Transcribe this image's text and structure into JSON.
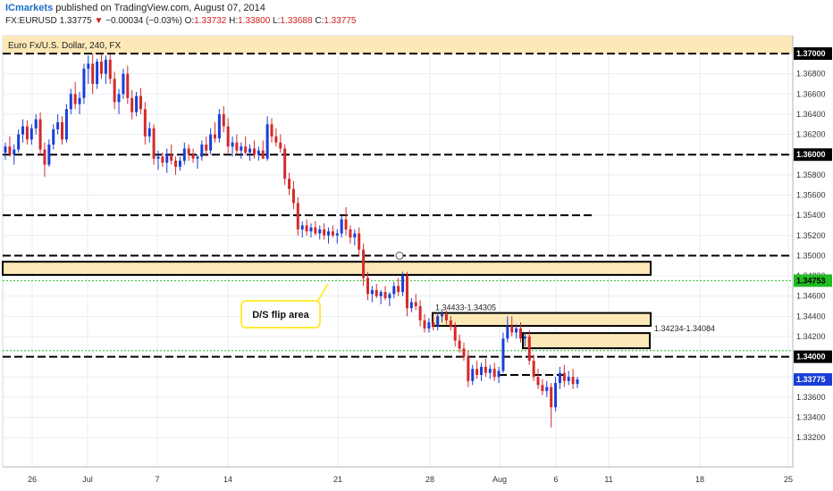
{
  "header": {
    "brand": "ICmarkets",
    "published": "published on TradingView.com, August 07, 2014",
    "pair": "FX:EURUSD",
    "last": "1.33775",
    "arrow": "▼",
    "change": "−0.00034 (−0.03%)",
    "o_label": "O:",
    "o": "1.33732",
    "h_label": "H:",
    "h": "1.33800",
    "l_label": "L:",
    "l": "1.33688",
    "c_label": "C:",
    "c": "1.33775"
  },
  "chart_data": {
    "type": "candlestick",
    "title": "Euro Fx/U.S. Dollar, 240, FX",
    "y_ticks": [
      "1.37000",
      "1.36800",
      "1.36600",
      "1.36400",
      "1.36200",
      "1.36000",
      "1.35800",
      "1.35600",
      "1.35400",
      "1.35200",
      "1.35000",
      "1.34800",
      "1.34600",
      "1.34400",
      "1.34200",
      "1.34000",
      "1.33800",
      "1.33600",
      "1.33400",
      "1.33200"
    ],
    "x_ticks": [
      "26",
      "Jul",
      "7",
      "14",
      "21",
      "28",
      "Aug",
      "6",
      "11",
      "18",
      "25"
    ],
    "ylim": [
      1.3318,
      1.3708
    ],
    "levels": [
      {
        "name": "1.37000 resistance",
        "price": 1.37,
        "style": "dashed",
        "color": "#000000"
      },
      {
        "name": "1.36000 level",
        "price": 1.36,
        "style": "dashed",
        "color": "#000000"
      },
      {
        "name": "1.35400 level",
        "price": 1.354,
        "style": "dashed",
        "color": "#000000"
      },
      {
        "name": "1.35000 level",
        "price": 1.35,
        "style": "dashed",
        "color": "#000000"
      },
      {
        "name": "1.34753 green level",
        "price": 1.34753,
        "style": "dotted",
        "color": "#22bb22"
      },
      {
        "name": "1.34000 level",
        "price": 1.34,
        "style": "dashed",
        "color": "#000000"
      },
      {
        "name": "1.34060 green level",
        "price": 1.3406,
        "style": "dotted",
        "color": "#22bb22"
      }
    ],
    "zones": [
      {
        "label": "",
        "from": 1.3708,
        "to": 1.3725
      },
      {
        "label": "",
        "from": 1.3479,
        "to": 1.3495
      },
      {
        "label": "1.34433-1.34305",
        "from": 1.34305,
        "to": 1.34433
      },
      {
        "label": "1.34234-1.34084",
        "from": 1.34084,
        "to": 1.34234
      }
    ],
    "annotations": [
      "D/S flip area"
    ],
    "price_labels": [
      "1.37000",
      "1.36000",
      "1.34753",
      "1.34000",
      "1.33775"
    ],
    "last_price": 1.33775,
    "candles": [
      [
        1.3602,
        1.3612,
        1.3595,
        1.3608
      ],
      [
        1.3608,
        1.3618,
        1.3598,
        1.36
      ],
      [
        1.36,
        1.361,
        1.359,
        1.3605
      ],
      [
        1.3605,
        1.3625,
        1.3602,
        1.362
      ],
      [
        1.362,
        1.3635,
        1.3612,
        1.3628
      ],
      [
        1.3628,
        1.3634,
        1.361,
        1.3615
      ],
      [
        1.3615,
        1.363,
        1.361,
        1.3626
      ],
      [
        1.3626,
        1.364,
        1.362,
        1.3635
      ],
      [
        1.3635,
        1.3642,
        1.36,
        1.3605
      ],
      [
        1.3605,
        1.3612,
        1.3578,
        1.359
      ],
      [
        1.359,
        1.3615,
        1.3588,
        1.361
      ],
      [
        1.361,
        1.363,
        1.3605,
        1.3625
      ],
      [
        1.3625,
        1.364,
        1.362,
        1.3632
      ],
      [
        1.3632,
        1.3638,
        1.361,
        1.3615
      ],
      [
        1.3615,
        1.365,
        1.3612,
        1.3645
      ],
      [
        1.3645,
        1.3665,
        1.364,
        1.366
      ],
      [
        1.366,
        1.3672,
        1.3645,
        1.365
      ],
      [
        1.365,
        1.3662,
        1.364,
        1.3656
      ],
      [
        1.3656,
        1.369,
        1.365,
        1.3685
      ],
      [
        1.3685,
        1.3698,
        1.367,
        1.369
      ],
      [
        1.369,
        1.37,
        1.366,
        1.367
      ],
      [
        1.367,
        1.3695,
        1.3665,
        1.3692
      ],
      [
        1.3692,
        1.37,
        1.3675,
        1.368
      ],
      [
        1.368,
        1.3698,
        1.367,
        1.3694
      ],
      [
        1.3694,
        1.3699,
        1.367,
        1.3675
      ],
      [
        1.3675,
        1.3682,
        1.3645,
        1.3652
      ],
      [
        1.3652,
        1.3665,
        1.364,
        1.366
      ],
      [
        1.366,
        1.3685,
        1.3655,
        1.368
      ],
      [
        1.368,
        1.3688,
        1.365,
        1.3656
      ],
      [
        1.3656,
        1.3664,
        1.3635,
        1.3642
      ],
      [
        1.3642,
        1.3662,
        1.3638,
        1.3658
      ],
      [
        1.3658,
        1.3666,
        1.364,
        1.3645
      ],
      [
        1.3645,
        1.3652,
        1.361,
        1.3618
      ],
      [
        1.3618,
        1.3632,
        1.3612,
        1.3626
      ],
      [
        1.3626,
        1.363,
        1.359,
        1.3596
      ],
      [
        1.3596,
        1.3604,
        1.3585,
        1.3598
      ],
      [
        1.3598,
        1.3602,
        1.3588,
        1.3592
      ],
      [
        1.3592,
        1.3606,
        1.3582,
        1.36
      ],
      [
        1.36,
        1.361,
        1.359,
        1.3594
      ],
      [
        1.3594,
        1.3598,
        1.358,
        1.3588
      ],
      [
        1.3588,
        1.3598,
        1.3584,
        1.3594
      ],
      [
        1.3594,
        1.3612,
        1.359,
        1.3606
      ],
      [
        1.3606,
        1.361,
        1.3594,
        1.36
      ],
      [
        1.36,
        1.3606,
        1.3592,
        1.3596
      ],
      [
        1.3596,
        1.36,
        1.3586,
        1.3598
      ],
      [
        1.3598,
        1.3614,
        1.3594,
        1.361
      ],
      [
        1.361,
        1.3618,
        1.3598,
        1.3604
      ],
      [
        1.3604,
        1.3626,
        1.36,
        1.362
      ],
      [
        1.362,
        1.3632,
        1.3612,
        1.3616
      ],
      [
        1.3616,
        1.3645,
        1.3612,
        1.364
      ],
      [
        1.364,
        1.3648,
        1.3622,
        1.3628
      ],
      [
        1.3628,
        1.3636,
        1.36,
        1.3608
      ],
      [
        1.3608,
        1.3618,
        1.3598,
        1.3612
      ],
      [
        1.3612,
        1.362,
        1.36,
        1.3604
      ],
      [
        1.3604,
        1.3612,
        1.3596,
        1.3608
      ],
      [
        1.3608,
        1.3618,
        1.36,
        1.3602
      ],
      [
        1.3602,
        1.361,
        1.3594,
        1.3606
      ],
      [
        1.3606,
        1.3614,
        1.3596,
        1.36
      ],
      [
        1.36,
        1.3608,
        1.3594,
        1.3604
      ],
      [
        1.3604,
        1.3614,
        1.3598,
        1.3596
      ],
      [
        1.3596,
        1.3638,
        1.3594,
        1.363
      ],
      [
        1.363,
        1.3636,
        1.3612,
        1.3618
      ],
      [
        1.3618,
        1.3626,
        1.3608,
        1.3612
      ],
      [
        1.3612,
        1.362,
        1.3602,
        1.3606
      ],
      [
        1.3606,
        1.361,
        1.357,
        1.3576
      ],
      [
        1.3576,
        1.3582,
        1.356,
        1.3566
      ],
      [
        1.3566,
        1.3574,
        1.3546,
        1.3552
      ],
      [
        1.3552,
        1.3558,
        1.352,
        1.3526
      ],
      [
        1.3526,
        1.3534,
        1.3518,
        1.353
      ],
      [
        1.353,
        1.3536,
        1.352,
        1.3524
      ],
      [
        1.3524,
        1.3532,
        1.3518,
        1.3528
      ],
      [
        1.3528,
        1.3534,
        1.352,
        1.3522
      ],
      [
        1.3522,
        1.353,
        1.3516,
        1.3526
      ],
      [
        1.3526,
        1.3532,
        1.3516,
        1.352
      ],
      [
        1.352,
        1.3528,
        1.3512,
        1.3524
      ],
      [
        1.3524,
        1.353,
        1.3518,
        1.352
      ],
      [
        1.352,
        1.3526,
        1.3512,
        1.3522
      ],
      [
        1.3522,
        1.354,
        1.3518,
        1.3536
      ],
      [
        1.3536,
        1.3548,
        1.352,
        1.3526
      ],
      [
        1.3526,
        1.353,
        1.3512,
        1.3518
      ],
      [
        1.3518,
        1.3526,
        1.351,
        1.3522
      ],
      [
        1.3522,
        1.3528,
        1.35,
        1.3506
      ],
      [
        1.3506,
        1.3512,
        1.347,
        1.3478
      ],
      [
        1.3478,
        1.3484,
        1.3456,
        1.3462
      ],
      [
        1.3462,
        1.347,
        1.3454,
        1.3466
      ],
      [
        1.3466,
        1.3472,
        1.3458,
        1.346
      ],
      [
        1.346,
        1.3466,
        1.3452,
        1.3464
      ],
      [
        1.3464,
        1.347,
        1.3456,
        1.3458
      ],
      [
        1.3458,
        1.3464,
        1.345,
        1.3462
      ],
      [
        1.3462,
        1.3474,
        1.3458,
        1.347
      ],
      [
        1.347,
        1.3478,
        1.346,
        1.3464
      ],
      [
        1.3464,
        1.3484,
        1.346,
        1.348
      ],
      [
        1.348,
        1.3484,
        1.344,
        1.3448
      ],
      [
        1.3448,
        1.3458,
        1.3444,
        1.3454
      ],
      [
        1.3454,
        1.3462,
        1.3446,
        1.345
      ],
      [
        1.345,
        1.3456,
        1.343,
        1.3436
      ],
      [
        1.3436,
        1.3442,
        1.3424,
        1.3428
      ],
      [
        1.3428,
        1.3438,
        1.3424,
        1.3434
      ],
      [
        1.3434,
        1.344,
        1.3426,
        1.343
      ],
      [
        1.343,
        1.3444,
        1.3426,
        1.344
      ],
      [
        1.344,
        1.3446,
        1.3434,
        1.3442
      ],
      [
        1.3442,
        1.3446,
        1.3432,
        1.3436
      ],
      [
        1.3436,
        1.344,
        1.3426,
        1.343
      ],
      [
        1.343,
        1.3434,
        1.341,
        1.3416
      ],
      [
        1.3416,
        1.3422,
        1.3404,
        1.3408
      ],
      [
        1.3408,
        1.3414,
        1.3396,
        1.34
      ],
      [
        1.34,
        1.3406,
        1.337,
        1.3376
      ],
      [
        1.3376,
        1.3392,
        1.3372,
        1.3388
      ],
      [
        1.3388,
        1.3396,
        1.3378,
        1.3382
      ],
      [
        1.3382,
        1.3394,
        1.3376,
        1.339
      ],
      [
        1.339,
        1.3398,
        1.338,
        1.3384
      ],
      [
        1.3384,
        1.3392,
        1.3378,
        1.3388
      ],
      [
        1.3388,
        1.3394,
        1.3376,
        1.338
      ],
      [
        1.338,
        1.339,
        1.3374,
        1.3386
      ],
      [
        1.3386,
        1.3424,
        1.3384,
        1.3418
      ],
      [
        1.3418,
        1.344,
        1.3414,
        1.343
      ],
      [
        1.343,
        1.344,
        1.342,
        1.3424
      ],
      [
        1.3424,
        1.3432,
        1.3418,
        1.3428
      ],
      [
        1.3428,
        1.3434,
        1.3414,
        1.3418
      ],
      [
        1.3418,
        1.3424,
        1.341,
        1.342
      ],
      [
        1.342,
        1.3426,
        1.3392,
        1.3396
      ],
      [
        1.3396,
        1.3402,
        1.3376,
        1.338
      ],
      [
        1.338,
        1.3388,
        1.3368,
        1.3372
      ],
      [
        1.3372,
        1.3378,
        1.3362,
        1.3366
      ],
      [
        1.3366,
        1.3376,
        1.336,
        1.337
      ],
      [
        1.337,
        1.3374,
        1.333,
        1.335
      ],
      [
        1.335,
        1.338,
        1.3346,
        1.3374
      ],
      [
        1.3374,
        1.339,
        1.3368,
        1.3384
      ],
      [
        1.3384,
        1.3392,
        1.337,
        1.3376
      ],
      [
        1.3376,
        1.3386,
        1.3372,
        1.338
      ],
      [
        1.338,
        1.3388,
        1.3368,
        1.3373
      ],
      [
        1.3373,
        1.338,
        1.3369,
        1.33775
      ]
    ]
  },
  "colors": {
    "bull": "#1a3fd6",
    "bear": "#d42a2a",
    "zone_fill": "#fde8b8",
    "zone_border": "#000000",
    "grid": "#e7eef5",
    "green": "#22bb22",
    "callout": "#ffeb3b",
    "last_badge": "#1a3fd6"
  }
}
